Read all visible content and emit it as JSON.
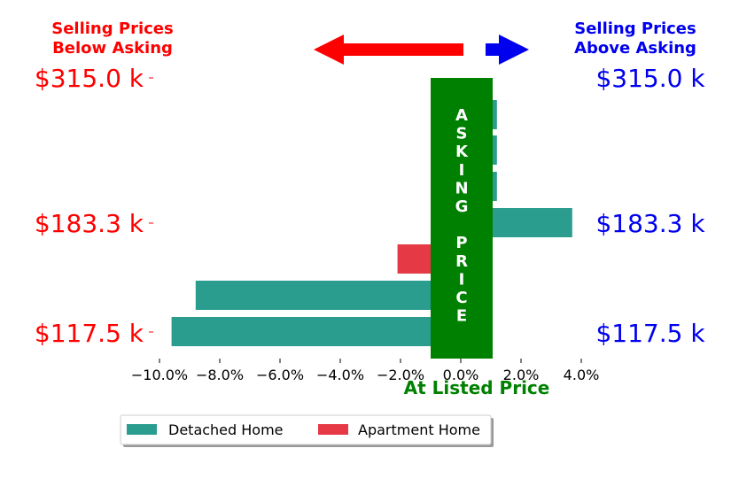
{
  "chart_data": {
    "type": "bar",
    "orientation": "horizontal",
    "x_ticks": [
      "−10.0%",
      "−8.0%",
      "−6.0%",
      "−4.0%",
      "−2.0%",
      "0.0%",
      "2.0%",
      "4.0%"
    ],
    "xlim": [
      -10.0,
      4.0
    ],
    "bars": [
      {
        "series": "Detached Home",
        "value": 1.2
      },
      {
        "series": "Detached Home",
        "value": 1.2
      },
      {
        "series": "Detached Home",
        "value": 1.2
      },
      {
        "series": "Detached Home",
        "value": 3.7
      },
      {
        "series": "Apartment Home",
        "value": -2.1
      },
      {
        "series": "Detached Home",
        "value": -8.8
      },
      {
        "series": "Detached Home",
        "value": -9.6
      }
    ],
    "series": [
      {
        "name": "Detached Home",
        "color": "#2a9d8f"
      },
      {
        "name": "Apartment Home",
        "color": "#e63946"
      }
    ],
    "price_labels": [
      "$315.0 k",
      "$183.3 k",
      "$117.5 k"
    ],
    "left_header": [
      "Selling Prices",
      "Below Asking"
    ],
    "right_header": [
      "Selling Prices",
      "Above Asking"
    ],
    "center_band_text": "ASKING PRICE",
    "xlabel": "At Listed Price",
    "colors": {
      "left": "#ff0000",
      "right": "#0000ee",
      "band": "#008000",
      "xlabel": "#008000"
    }
  }
}
